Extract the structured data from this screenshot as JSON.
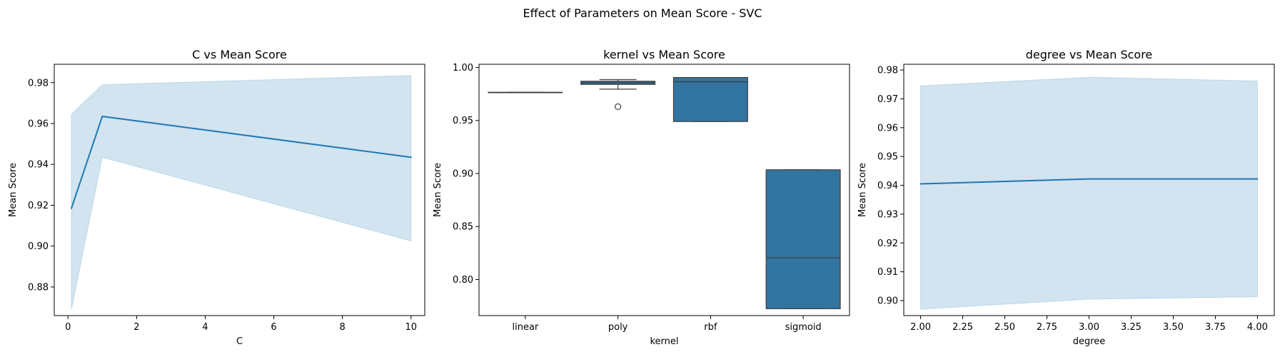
{
  "suptitle": "Effect of Parameters on Mean Score - SVC",
  "colors": {
    "line": "#1f77b4",
    "band": "#1f77b4",
    "box": "#3274a1",
    "axis": "#000000",
    "median": "#3d3d3d"
  },
  "chart_data": [
    {
      "type": "line",
      "title": "C vs Mean Score",
      "xlabel": "C",
      "ylabel": "Mean Score",
      "xlim": [
        -0.4,
        10.4
      ],
      "ylim": [
        0.866,
        0.989
      ],
      "xticks": [
        0,
        2,
        4,
        6,
        8,
        10
      ],
      "xtick_labels": [
        "0",
        "2",
        "4",
        "6",
        "8",
        "10"
      ],
      "yticks": [
        0.88,
        0.9,
        0.92,
        0.94,
        0.96,
        0.98
      ],
      "ytick_labels": [
        "0.88",
        "0.90",
        "0.92",
        "0.94",
        "0.96",
        "0.98"
      ],
      "grid": false,
      "series": [
        {
          "x": [
            0.1,
            1,
            10
          ],
          "y": [
            0.9185,
            0.9635,
            0.9435
          ],
          "ci_lower": [
            0.869,
            0.9435,
            0.9025
          ],
          "ci_upper": [
            0.9645,
            0.979,
            0.9835
          ]
        }
      ]
    },
    {
      "type": "box",
      "title": "kernel vs Mean Score",
      "xlabel": "kernel",
      "ylabel": "Mean Score",
      "ylim": [
        0.766,
        1.003
      ],
      "yticks": [
        0.8,
        0.85,
        0.9,
        0.95,
        1.0
      ],
      "ytick_labels": [
        "0.80",
        "0.85",
        "0.90",
        "0.95",
        "1.00"
      ],
      "grid": false,
      "categories": [
        "linear",
        "poly",
        "rbf",
        "sigmoid"
      ],
      "boxes": [
        {
          "whislo": 0.9765,
          "q1": 0.9765,
          "med": 0.9765,
          "q3": 0.9765,
          "whishi": 0.9765,
          "fliers": []
        },
        {
          "whislo": 0.9795,
          "q1": 0.984,
          "med": 0.9855,
          "q3": 0.987,
          "whishi": 0.9885,
          "fliers": [
            0.963
          ]
        },
        {
          "whislo": 0.949,
          "q1": 0.949,
          "med": 0.9865,
          "q3": 0.9905,
          "whishi": 0.9905,
          "fliers": []
        },
        {
          "whislo": 0.7725,
          "q1": 0.7725,
          "med": 0.8205,
          "q3": 0.9035,
          "whishi": 0.9035,
          "fliers": []
        }
      ]
    },
    {
      "type": "line",
      "title": "degree vs Mean Score",
      "xlabel": "degree",
      "ylabel": "Mean Score",
      "xlim": [
        1.9,
        4.1
      ],
      "ylim": [
        0.8948,
        0.982
      ],
      "xticks": [
        2.0,
        2.25,
        2.5,
        2.75,
        3.0,
        3.25,
        3.5,
        3.75,
        4.0
      ],
      "xtick_labels": [
        "2.00",
        "2.25",
        "2.50",
        "2.75",
        "3.00",
        "3.25",
        "3.50",
        "3.75",
        "4.00"
      ],
      "yticks": [
        0.9,
        0.91,
        0.92,
        0.93,
        0.94,
        0.95,
        0.96,
        0.97,
        0.98
      ],
      "ytick_labels": [
        "0.90",
        "0.91",
        "0.92",
        "0.93",
        "0.94",
        "0.95",
        "0.96",
        "0.97",
        "0.98"
      ],
      "grid": false,
      "series": [
        {
          "x": [
            2,
            3,
            4
          ],
          "y": [
            0.9405,
            0.9422,
            0.9422
          ],
          "ci_lower": [
            0.897,
            0.9005,
            0.9013
          ],
          "ci_upper": [
            0.9745,
            0.9775,
            0.9762
          ]
        }
      ]
    }
  ]
}
